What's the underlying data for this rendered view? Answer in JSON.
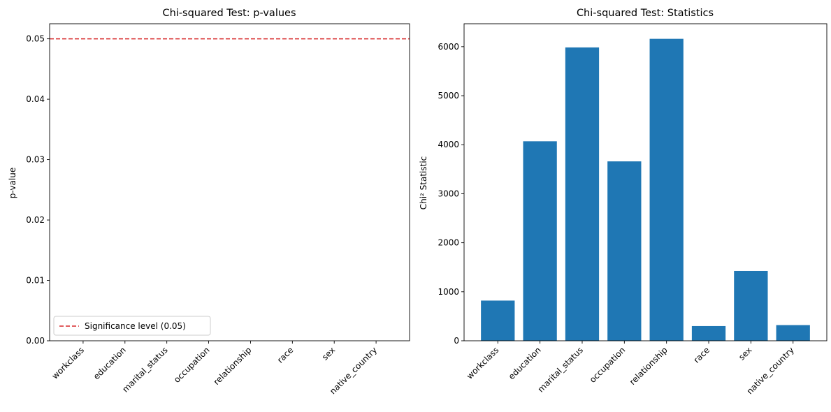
{
  "colors": {
    "bar": "#1f77b4",
    "threshold": "#d62728",
    "axis": "#000000",
    "background": "#ffffff"
  },
  "chart_data": [
    {
      "type": "bar",
      "title": "Chi-squared Test: p-values",
      "xlabel": "",
      "ylabel": "p-value",
      "categories": [
        "workclass",
        "education",
        "marital_status",
        "occupation",
        "relationship",
        "race",
        "sex",
        "native_country"
      ],
      "values": [
        0.0,
        0.0,
        0.0,
        0.0,
        0.0,
        0.0,
        0.0,
        0.0
      ],
      "ylim": [
        0,
        0.0525
      ],
      "yticks": [
        0.0,
        0.01,
        0.02,
        0.03,
        0.04,
        0.05
      ],
      "ytick_labels": [
        "0.00",
        "0.01",
        "0.02",
        "0.03",
        "0.04",
        "0.05"
      ],
      "reference_line": {
        "value": 0.05,
        "style": "dashed",
        "label": "Significance level (0.05)"
      },
      "legend": {
        "placement": "lower-left",
        "entries": [
          "Significance level (0.05)"
        ]
      },
      "grid": false
    },
    {
      "type": "bar",
      "title": "Chi-squared Test: Statistics",
      "xlabel": "",
      "ylabel": "Chi² Statistic",
      "categories": [
        "workclass",
        "education",
        "marital_status",
        "occupation",
        "relationship",
        "race",
        "sex",
        "native_country"
      ],
      "values": [
        820,
        4070,
        5985,
        3660,
        6160,
        300,
        1425,
        320
      ],
      "ylim": [
        0,
        6468
      ],
      "yticks": [
        0,
        1000,
        2000,
        3000,
        4000,
        5000,
        6000
      ],
      "ytick_labels": [
        "0",
        "1000",
        "2000",
        "3000",
        "4000",
        "5000",
        "6000"
      ],
      "grid": false
    }
  ]
}
